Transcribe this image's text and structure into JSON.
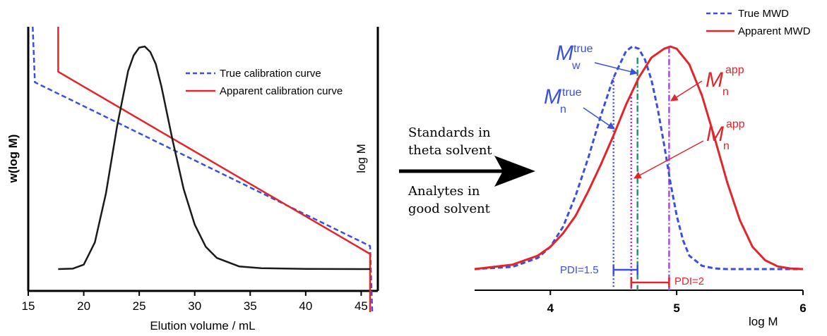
{
  "colors": {
    "true_blue": "#3a4fe0",
    "apparent_red": "#e3242b",
    "peak_black": "#1a1a1a",
    "mw_green": "#1e9a6a",
    "magenta": "#d11fd1",
    "purple": "#a050e0"
  },
  "chart_data": [
    {
      "type": "line",
      "xlabel": "Elution volume / mL",
      "ylabel_left": "w(log M)",
      "ylabel_right": "log M",
      "xlim": [
        15,
        46.5
      ],
      "xticks": [
        "15",
        "20",
        "25",
        "30",
        "35",
        "40",
        "45"
      ],
      "xtick_values": [
        15,
        20,
        25,
        30,
        35,
        40,
        45
      ],
      "legend": [
        "True calibration curve",
        "Apparent calibration curve"
      ],
      "legend_position": "upper-right",
      "series": [
        {
          "name": "True calibration curve",
          "style": "dashed",
          "color": "#3a4fe0",
          "x": [
            15.4,
            15.6,
            45.8,
            46.0
          ],
          "y": [
            1.0,
            0.79,
            0.17,
            -0.08
          ]
        },
        {
          "name": "Apparent calibration curve",
          "style": "solid",
          "color": "#e3242b",
          "x": [
            17.7,
            17.7,
            45.8,
            45.8
          ],
          "y": [
            1.0,
            0.83,
            0.14,
            -0.08
          ]
        },
        {
          "style": "solid",
          "color": "#1a1a1a",
          "x": [
            17.7,
            19.0,
            20.0,
            21.0,
            22.0,
            23.0,
            24.0,
            24.5,
            25.0,
            25.5,
            26.0,
            26.5,
            27.0,
            28.0,
            29.0,
            30.0,
            31.0,
            32.0,
            34.0,
            36.0,
            40.0,
            45.0,
            45.8
          ],
          "y": [
            0.0,
            0.002,
            0.02,
            0.12,
            0.34,
            0.64,
            0.89,
            0.96,
            0.995,
            1.0,
            0.975,
            0.92,
            0.82,
            0.58,
            0.36,
            0.2,
            0.1,
            0.05,
            0.012,
            0.004,
            0.001,
            0.0,
            0.0
          ]
        }
      ]
    },
    {
      "type": "line",
      "xlabel": "log M",
      "xlim": [
        3.4,
        6.0
      ],
      "xticks": [
        "4",
        "5",
        "6"
      ],
      "xtick_values": [
        4,
        5,
        6
      ],
      "legend": [
        "True MWD",
        "Apparent MWD"
      ],
      "legend_position": "top-right",
      "series": [
        {
          "name": "True MWD",
          "style": "dashed",
          "color": "#3a4fe0",
          "x": [
            3.4,
            3.7,
            3.9,
            4.0,
            4.1,
            4.2,
            4.3,
            4.4,
            4.5,
            4.6,
            4.65,
            4.7,
            4.75,
            4.8,
            4.85,
            4.9,
            4.95,
            5.0,
            5.05,
            5.1,
            5.2,
            5.3,
            5.4,
            5.6,
            6.0
          ],
          "y": [
            0.0,
            0.01,
            0.05,
            0.1,
            0.19,
            0.33,
            0.5,
            0.69,
            0.86,
            0.98,
            1.0,
            0.99,
            0.94,
            0.85,
            0.72,
            0.56,
            0.39,
            0.24,
            0.13,
            0.06,
            0.015,
            0.003,
            0.0,
            0.0,
            0.0
          ]
        },
        {
          "name": "Apparent MWD",
          "style": "solid",
          "color": "#e3242b",
          "x": [
            3.4,
            3.7,
            3.9,
            4.0,
            4.1,
            4.2,
            4.3,
            4.4,
            4.5,
            4.6,
            4.7,
            4.8,
            4.9,
            4.95,
            5.0,
            5.1,
            5.2,
            5.3,
            5.4,
            5.5,
            5.6,
            5.7,
            5.8,
            5.9,
            6.0
          ],
          "y": [
            0.0,
            0.02,
            0.06,
            0.1,
            0.16,
            0.24,
            0.35,
            0.47,
            0.6,
            0.74,
            0.86,
            0.95,
            0.99,
            1.0,
            0.99,
            0.92,
            0.78,
            0.59,
            0.39,
            0.22,
            0.1,
            0.04,
            0.012,
            0.003,
            0.0
          ]
        }
      ],
      "markers": {
        "mn_true": 4.5,
        "mw_true": 4.69,
        "mn_app": 4.64,
        "mw_app": 4.94
      },
      "annotations": {
        "m_symbol": "M",
        "sup_true": "true",
        "sup_app": "app",
        "sub_n": "n",
        "sub_w": "w",
        "pdi_true": "PDI=1.5",
        "pdi_app": "PDI=2"
      }
    }
  ],
  "middle_text": {
    "top_line1": "Standards in",
    "top_line2": "theta solvent",
    "bottom_line1": "Analytes in",
    "bottom_line2": "good solvent"
  }
}
